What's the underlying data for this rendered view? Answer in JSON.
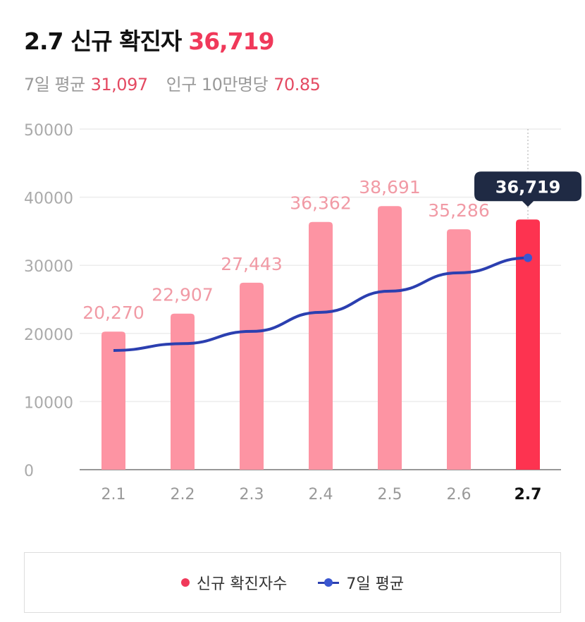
{
  "header": {
    "date_label": "2.7 신규 확진자",
    "value": "36,719"
  },
  "subheader": {
    "avg_label": "7일 평균",
    "avg_value": "31,097",
    "per100k_label": "인구 10만명당",
    "per100k_value": "70.85"
  },
  "chart_data": {
    "type": "bar",
    "categories": [
      "2.1",
      "2.2",
      "2.3",
      "2.4",
      "2.5",
      "2.6",
      "2.7"
    ],
    "series": [
      {
        "name": "신규 확진자수",
        "type": "bar",
        "values": [
          20270,
          22907,
          27443,
          36362,
          38691,
          35286,
          36719
        ],
        "labels": [
          "20,270",
          "22,907",
          "27,443",
          "36,362",
          "38,691",
          "35,286",
          "36,719"
        ],
        "color": "#fd94a3",
        "highlight_color": "#fd3350"
      },
      {
        "name": "7일 평균",
        "type": "line",
        "values": [
          17500,
          18500,
          20300,
          23100,
          26200,
          28900,
          31097
        ],
        "color": "#2b3fb0"
      }
    ],
    "yticks": [
      "0",
      "10000",
      "20000",
      "30000",
      "40000",
      "50000"
    ],
    "ylim": [
      0,
      50000
    ],
    "tooltip": "36,719",
    "grid": true,
    "legend": "bottom"
  },
  "legend": {
    "items": [
      "신규 확진자수",
      "7일 평균"
    ]
  }
}
